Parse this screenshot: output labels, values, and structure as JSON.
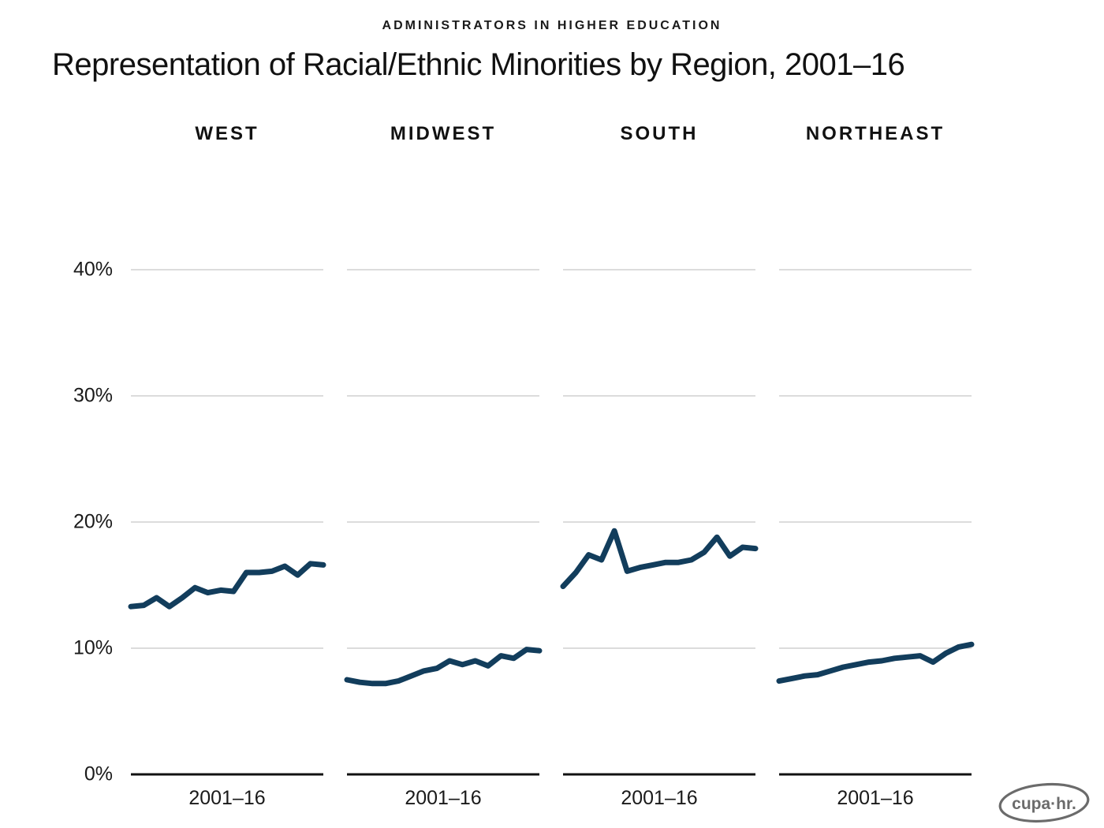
{
  "header": {
    "eyebrow": "ADMINISTRATORS IN HIGHER EDUCATION",
    "title": "Representation of Racial/Ethnic Minorities by Region, 2001–16"
  },
  "chart_data": {
    "type": "line",
    "layout_hint": "four small-multiple panels sharing one y-axis, gridlines on, no legend",
    "years": [
      2001,
      2002,
      2003,
      2004,
      2005,
      2006,
      2007,
      2008,
      2009,
      2010,
      2011,
      2012,
      2013,
      2014,
      2015,
      2016
    ],
    "panels": [
      {
        "label": "WEST",
        "values": [
          13.3,
          13.4,
          14.0,
          13.3,
          14.0,
          14.8,
          14.4,
          14.6,
          14.5,
          16.0,
          16.0,
          16.1,
          16.5,
          15.8,
          16.7,
          16.6
        ]
      },
      {
        "label": "MIDWEST",
        "values": [
          7.5,
          7.3,
          7.2,
          7.2,
          7.4,
          7.8,
          8.2,
          8.4,
          9.0,
          8.7,
          9.0,
          8.6,
          9.4,
          9.2,
          9.9,
          9.8
        ]
      },
      {
        "label": "SOUTH",
        "values": [
          14.9,
          16.0,
          17.4,
          17.0,
          19.3,
          16.1,
          16.4,
          16.6,
          16.8,
          16.8,
          17.0,
          17.6,
          18.8,
          17.3,
          18.0,
          17.9
        ]
      },
      {
        "label": "NORTHEAST",
        "values": [
          7.4,
          7.6,
          7.8,
          7.9,
          8.2,
          8.5,
          8.7,
          8.9,
          9.0,
          9.2,
          9.3,
          9.4,
          8.9,
          9.6,
          10.1,
          10.3
        ]
      }
    ],
    "x_tick_label": "2001–16",
    "y_ticks": [
      "40%",
      "30%",
      "20%",
      "10%",
      "0%"
    ],
    "y_tick_values": [
      40,
      30,
      20,
      10,
      0
    ],
    "ylim": [
      0,
      44
    ],
    "xlabel": "",
    "ylabel": "",
    "line_color": "#123d5c",
    "grid_color": "#c8c8c8",
    "axis_color": "#111111"
  },
  "logo": {
    "text": "cupa·hr."
  }
}
